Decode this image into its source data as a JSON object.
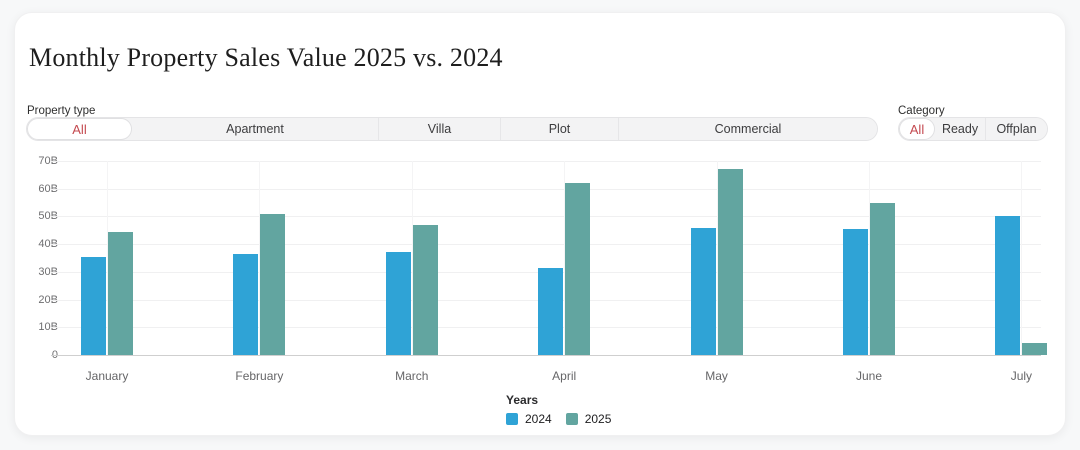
{
  "header": {
    "title": "Monthly Property Sales Value 2025 vs. 2024"
  },
  "filters": {
    "property_type": {
      "label": "Property type",
      "options": [
        {
          "label": "All",
          "selected": true
        },
        {
          "label": "Apartment",
          "selected": false
        },
        {
          "label": "Villa",
          "selected": false
        },
        {
          "label": "Plot",
          "selected": false
        },
        {
          "label": "Commercial",
          "selected": false
        }
      ]
    },
    "category": {
      "label": "Category",
      "options": [
        {
          "label": "All",
          "selected": true
        },
        {
          "label": "Ready",
          "selected": false
        },
        {
          "label": "Offplan",
          "selected": false
        }
      ]
    }
  },
  "colors": {
    "accent_red": "#c4494f",
    "bar_2024": "#2fa3d6",
    "bar_2025": "#62a5a0",
    "axis_line": "#cfcfcf",
    "gridline": "#f0f0f1"
  },
  "chart_data": {
    "type": "bar",
    "title": "Monthly Property Sales Value 2025 vs. 2024",
    "categories": [
      "January",
      "February",
      "March",
      "April",
      "May",
      "June",
      "July"
    ],
    "series": [
      {
        "name": "2024",
        "color": "#2fa3d6",
        "values": [
          35.5,
          36.5,
          37,
          31.5,
          46,
          45.5,
          50
        ]
      },
      {
        "name": "2025",
        "color": "#62a5a0",
        "values": [
          44.5,
          51,
          47,
          62,
          67,
          55,
          4.5
        ]
      }
    ],
    "unit": "B",
    "xlabel": "",
    "ylabel": "",
    "ylim": [
      0,
      70
    ],
    "y_ticks": [
      "70B",
      "60B",
      "50B",
      "40B",
      "30B",
      "20B",
      "10B",
      "0"
    ],
    "grid": true,
    "legend_title": "Years",
    "legend_position": "bottom"
  }
}
